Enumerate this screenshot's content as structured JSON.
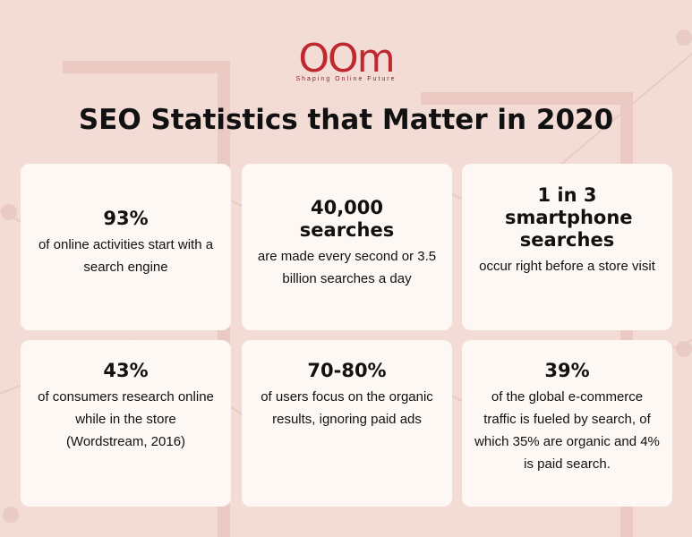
{
  "logo": {
    "mark": "OOm",
    "tagline": "Shaping Online Future"
  },
  "title": "SEO Statistics that Matter in 2020",
  "cards": [
    {
      "stat": "93%",
      "desc": "of online activities start with a search engine"
    },
    {
      "stat": "40,000 searches",
      "desc": "are made every second or 3.5 billion searches a day"
    },
    {
      "stat": "1 in 3 smartphone searches",
      "desc": "occur right before a store visit"
    },
    {
      "stat": "43%",
      "desc": "of consumers research online while in the store (Wordstream, 2016)"
    },
    {
      "stat": "70-80%",
      "desc": "of users focus on the organic results, ignoring paid ads"
    },
    {
      "stat": "39%",
      "desc": "of the global e-commerce traffic is fueled by search, of which 35% are organic and 4% is paid search."
    }
  ],
  "colors": {
    "background": "#f3dcd6",
    "card": "#fdf8f4",
    "brand": "#8a1f2d"
  }
}
